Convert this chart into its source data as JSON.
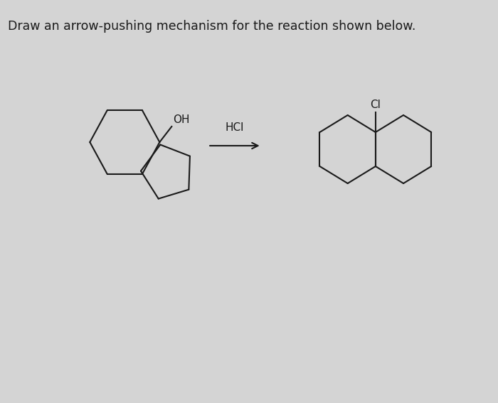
{
  "title": "Draw an arrow-pushing mechanism for the reaction shown below.",
  "title_fontsize": 12.5,
  "bg_color": "#d4d4d4",
  "text_color": "#1a1a1a",
  "reagent": "HCl",
  "oh_label": "OH",
  "cl_label": "Cl",
  "line_color": "#1a1a1a",
  "line_width": 1.5,
  "fig_width": 7.0,
  "fig_height": 5.67
}
